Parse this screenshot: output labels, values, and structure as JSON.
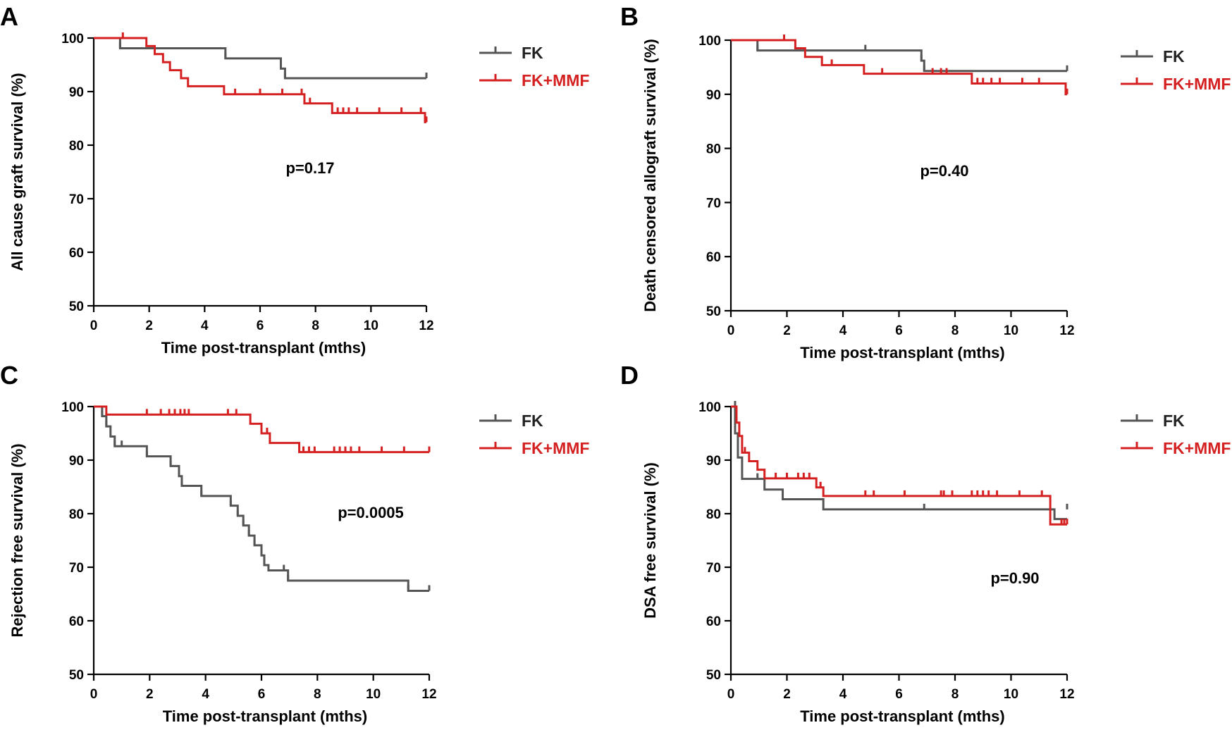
{
  "chart_data": [
    {
      "type": "line",
      "panel": "A",
      "title": "",
      "xlabel": "Time post-transplant (mths)",
      "ylabel": "All cause graft survival (%)",
      "xlim": [
        0,
        12
      ],
      "ylim": [
        50,
        100
      ],
      "xticks": [
        "0",
        "2",
        "4",
        "6",
        "8",
        "10",
        "12"
      ],
      "yticks": [
        "50",
        "60",
        "70",
        "80",
        "90",
        "100"
      ],
      "annotation": "p=0.17",
      "series": [
        {
          "name": "FK",
          "color": "#555555",
          "steps": [
            [
              0,
              100
            ],
            [
              0.95,
              98.1
            ],
            [
              4.75,
              96.2
            ],
            [
              6.75,
              94.3
            ],
            [
              6.9,
              92.5
            ],
            [
              12,
              92.5
            ]
          ],
          "censors": [
            [
              0.95,
              98.1
            ],
            [
              4.75,
              96.2
            ],
            [
              6.75,
              94.3
            ],
            [
              6.9,
              92.5
            ],
            [
              12,
              92.5
            ]
          ]
        },
        {
          "name": "FK+MMF",
          "color": "#d42020",
          "steps": [
            [
              0,
              100
            ],
            [
              1.9,
              98.5
            ],
            [
              2.2,
              97
            ],
            [
              2.5,
              95.5
            ],
            [
              2.75,
              94
            ],
            [
              3.15,
              92.5
            ],
            [
              3.4,
              91
            ],
            [
              4.7,
              89.5
            ],
            [
              7.6,
              87.8
            ],
            [
              8.6,
              86
            ],
            [
              11.95,
              84.3
            ],
            [
              12,
              84.3
            ]
          ],
          "censors": [
            [
              1.05,
              100
            ],
            [
              5.1,
              89.5
            ],
            [
              6.0,
              89.5
            ],
            [
              6.8,
              89.5
            ],
            [
              7.5,
              89.5
            ],
            [
              7.8,
              87.8
            ],
            [
              8.8,
              86
            ],
            [
              9.0,
              86
            ],
            [
              9.2,
              86
            ],
            [
              9.5,
              86
            ],
            [
              10.3,
              86
            ],
            [
              11.1,
              86
            ],
            [
              11.8,
              86
            ],
            [
              12,
              84.3
            ]
          ]
        }
      ]
    },
    {
      "type": "line",
      "panel": "B",
      "title": "",
      "xlabel": "Time post-transplant (mths)",
      "ylabel": "Death censored allograft survival (%)",
      "xlim": [
        0,
        12
      ],
      "ylim": [
        50,
        100
      ],
      "xticks": [
        "0",
        "2",
        "4",
        "6",
        "8",
        "10",
        "12"
      ],
      "yticks": [
        "50",
        "60",
        "70",
        "80",
        "90",
        "100"
      ],
      "annotation": "p=0.40",
      "series": [
        {
          "name": "FK",
          "color": "#555555",
          "steps": [
            [
              0,
              100
            ],
            [
              0.95,
              98.1
            ],
            [
              6.8,
              96.2
            ],
            [
              6.9,
              94.3
            ],
            [
              12,
              94.3
            ]
          ],
          "censors": [
            [
              0.95,
              98.1
            ],
            [
              4.8,
              98.1
            ],
            [
              6.8,
              96.2
            ],
            [
              6.9,
              94.3
            ],
            [
              12,
              94.3
            ]
          ]
        },
        {
          "name": "FK+MMF",
          "color": "#d42020",
          "steps": [
            [
              0,
              100
            ],
            [
              2.3,
              98.5
            ],
            [
              2.65,
              96.9
            ],
            [
              3.25,
              95.4
            ],
            [
              4.75,
              93.8
            ],
            [
              8.6,
              92
            ],
            [
              11.95,
              90
            ],
            [
              12,
              90
            ]
          ],
          "censors": [
            [
              1.9,
              100
            ],
            [
              3.6,
              95.4
            ],
            [
              5.4,
              93.8
            ],
            [
              7.2,
              93.8
            ],
            [
              7.5,
              93.8
            ],
            [
              7.7,
              93.8
            ],
            [
              8.8,
              92
            ],
            [
              9.0,
              92
            ],
            [
              9.3,
              92
            ],
            [
              9.6,
              92
            ],
            [
              10.4,
              92
            ],
            [
              11.0,
              92
            ],
            [
              12,
              90
            ]
          ]
        }
      ]
    },
    {
      "type": "line",
      "panel": "C",
      "title": "",
      "xlabel": "Time post-transplant (mths)",
      "ylabel": "Rejection free survival (%)",
      "xlim": [
        0,
        12
      ],
      "ylim": [
        50,
        100
      ],
      "xticks": [
        "0",
        "2",
        "4",
        "6",
        "8",
        "10",
        "12"
      ],
      "yticks": [
        "50",
        "60",
        "70",
        "80",
        "90",
        "100"
      ],
      "annotation": "p=0.0005",
      "series": [
        {
          "name": "FK",
          "color": "#555555",
          "steps": [
            [
              0,
              100
            ],
            [
              0.3,
              98.2
            ],
            [
              0.45,
              96.3
            ],
            [
              0.6,
              94.4
            ],
            [
              0.75,
              92.6
            ],
            [
              1.9,
              90.7
            ],
            [
              2.75,
              88.9
            ],
            [
              3.05,
              87
            ],
            [
              3.15,
              85.2
            ],
            [
              3.85,
              83.3
            ],
            [
              4.9,
              81.5
            ],
            [
              5.15,
              79.6
            ],
            [
              5.35,
              77.8
            ],
            [
              5.55,
              75.9
            ],
            [
              5.75,
              74.1
            ],
            [
              6.0,
              72.2
            ],
            [
              6.1,
              70.4
            ],
            [
              6.25,
              69.4
            ],
            [
              6.95,
              67.5
            ],
            [
              11.25,
              65.6
            ],
            [
              12,
              65.6
            ]
          ],
          "censors": [
            [
              0.3,
              98.2
            ],
            [
              0.45,
              96.3
            ],
            [
              0.75,
              92.6
            ],
            [
              1.0,
              92.6
            ],
            [
              1.9,
              90.7
            ],
            [
              2.75,
              88.9
            ],
            [
              3.05,
              87
            ],
            [
              3.15,
              85.2
            ],
            [
              3.85,
              83.3
            ],
            [
              4.9,
              81.5
            ],
            [
              5.15,
              79.6
            ],
            [
              5.35,
              77.8
            ],
            [
              5.55,
              75.9
            ],
            [
              5.75,
              74.1
            ],
            [
              6.0,
              72.2
            ],
            [
              6.1,
              70.4
            ],
            [
              6.8,
              69.4
            ],
            [
              6.95,
              67.5
            ],
            [
              11.25,
              65.6
            ],
            [
              12,
              65.6
            ]
          ]
        },
        {
          "name": "FK+MMF",
          "color": "#d42020",
          "steps": [
            [
              0,
              100
            ],
            [
              0.45,
              98.5
            ],
            [
              5.6,
              96.8
            ],
            [
              6.0,
              95
            ],
            [
              6.3,
              93.2
            ],
            [
              7.35,
              91.5
            ],
            [
              12,
              91.5
            ]
          ],
          "censors": [
            [
              1.9,
              98.5
            ],
            [
              2.4,
              98.5
            ],
            [
              2.7,
              98.5
            ],
            [
              2.9,
              98.5
            ],
            [
              3.1,
              98.5
            ],
            [
              3.25,
              98.5
            ],
            [
              3.4,
              98.5
            ],
            [
              4.8,
              98.5
            ],
            [
              5.1,
              98.5
            ],
            [
              6.2,
              95
            ],
            [
              7.5,
              91.5
            ],
            [
              7.7,
              91.5
            ],
            [
              7.9,
              91.5
            ],
            [
              8.6,
              91.5
            ],
            [
              8.8,
              91.5
            ],
            [
              9.0,
              91.5
            ],
            [
              9.2,
              91.5
            ],
            [
              9.5,
              91.5
            ],
            [
              10.3,
              91.5
            ],
            [
              11.1,
              91.5
            ],
            [
              12,
              91.5
            ]
          ]
        }
      ]
    },
    {
      "type": "line",
      "panel": "D",
      "title": "",
      "xlabel": "Time post-transplant (mths)",
      "ylabel": "DSA free survival (%)",
      "xlim": [
        0,
        12
      ],
      "ylim": [
        50,
        100
      ],
      "xticks": [
        "0",
        "2",
        "4",
        "6",
        "8",
        "10",
        "12"
      ],
      "yticks": [
        "50",
        "60",
        "70",
        "80",
        "90",
        "100"
      ],
      "annotation": "p=0.90",
      "series": [
        {
          "name": "FK",
          "color": "#555555",
          "steps": [
            [
              0,
              100
            ],
            [
              0.15,
              95
            ],
            [
              0.25,
              90.5
            ],
            [
              0.4,
              86.5
            ],
            [
              1.2,
              84.5
            ],
            [
              1.85,
              82.7
            ],
            [
              3.3,
              80.8
            ],
            [
              11.55,
              79
            ],
            [
              12,
              79
            ]
          ],
          "censors": [
            [
              0.15,
              100
            ],
            [
              0.95,
              86.5
            ],
            [
              6.9,
              80.8
            ],
            [
              12,
              80.8
            ]
          ]
        },
        {
          "name": "FK+MMF",
          "color": "#d42020",
          "steps": [
            [
              0,
              100
            ],
            [
              0.2,
              97
            ],
            [
              0.3,
              94.5
            ],
            [
              0.4,
              91.4
            ],
            [
              0.65,
              89.8
            ],
            [
              0.95,
              88.2
            ],
            [
              1.2,
              86.6
            ],
            [
              3.05,
              84.9
            ],
            [
              3.3,
              83.3
            ],
            [
              11.4,
              78
            ],
            [
              12,
              78
            ]
          ],
          "censors": [
            [
              0.5,
              91.4
            ],
            [
              1.6,
              86.6
            ],
            [
              2.0,
              86.6
            ],
            [
              2.4,
              86.6
            ],
            [
              2.6,
              86.6
            ],
            [
              2.8,
              86.6
            ],
            [
              3.2,
              84.9
            ],
            [
              4.8,
              83.3
            ],
            [
              5.1,
              83.3
            ],
            [
              6.2,
              83.3
            ],
            [
              7.5,
              83.3
            ],
            [
              7.6,
              83.3
            ],
            [
              7.9,
              83.3
            ],
            [
              8.6,
              83.3
            ],
            [
              8.8,
              83.3
            ],
            [
              9.0,
              83.3
            ],
            [
              9.2,
              83.3
            ],
            [
              9.5,
              83.3
            ],
            [
              10.3,
              83.3
            ],
            [
              11.1,
              83.3
            ],
            [
              11.8,
              78
            ],
            [
              11.9,
              78
            ],
            [
              12,
              78
            ]
          ]
        }
      ]
    }
  ]
}
